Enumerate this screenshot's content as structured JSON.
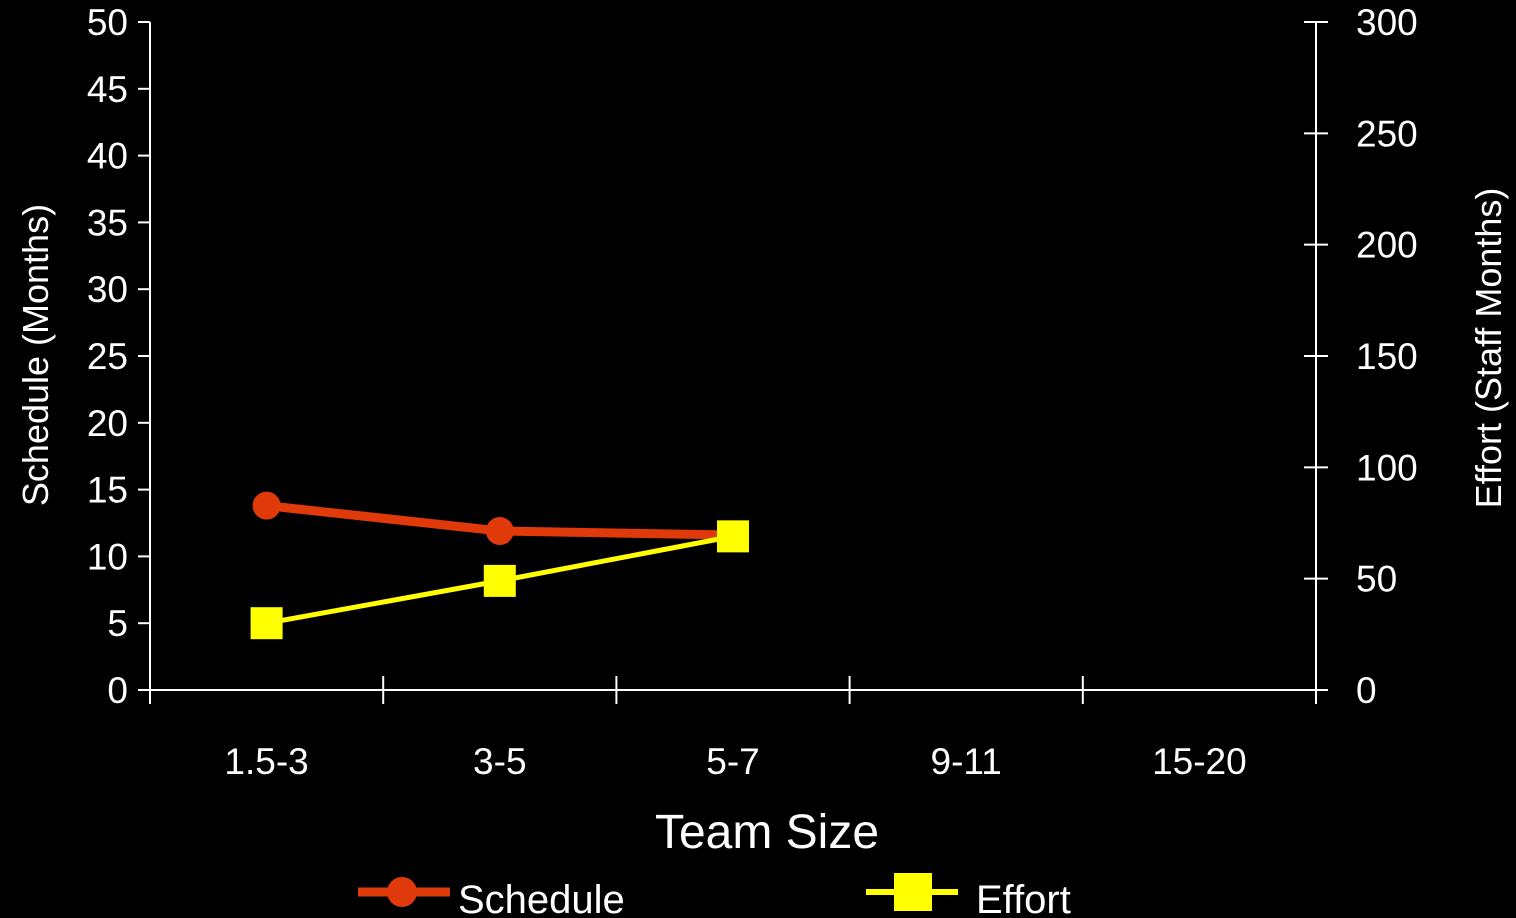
{
  "chart_data": {
    "type": "line",
    "categories": [
      "1.5-3",
      "3-5",
      "5-7",
      "9-11",
      "15-20"
    ],
    "xlabel": "Team Size",
    "ylabel": "Schedule (Months)",
    "y2label": "Effort (Staff Months)",
    "ylim": [
      0,
      50
    ],
    "y2lim": [
      0,
      300
    ],
    "yticks": [
      "0",
      "5",
      "10",
      "15",
      "20",
      "25",
      "30",
      "35",
      "40",
      "45",
      "50"
    ],
    "y2ticks": [
      "0",
      "50",
      "100",
      "150",
      "200",
      "250",
      "300"
    ],
    "grid": false,
    "legend_position": "bottom",
    "background": "#000000",
    "series": [
      {
        "name": "Schedule",
        "axis": "left",
        "marker": "circle",
        "color": "#E03A0A",
        "values": [
          13.8,
          11.9,
          11.6,
          null,
          null
        ]
      },
      {
        "name": "Effort",
        "axis": "right",
        "marker": "square",
        "color": "#FFFF00",
        "values": [
          30,
          49,
          69,
          null,
          null
        ]
      }
    ]
  }
}
